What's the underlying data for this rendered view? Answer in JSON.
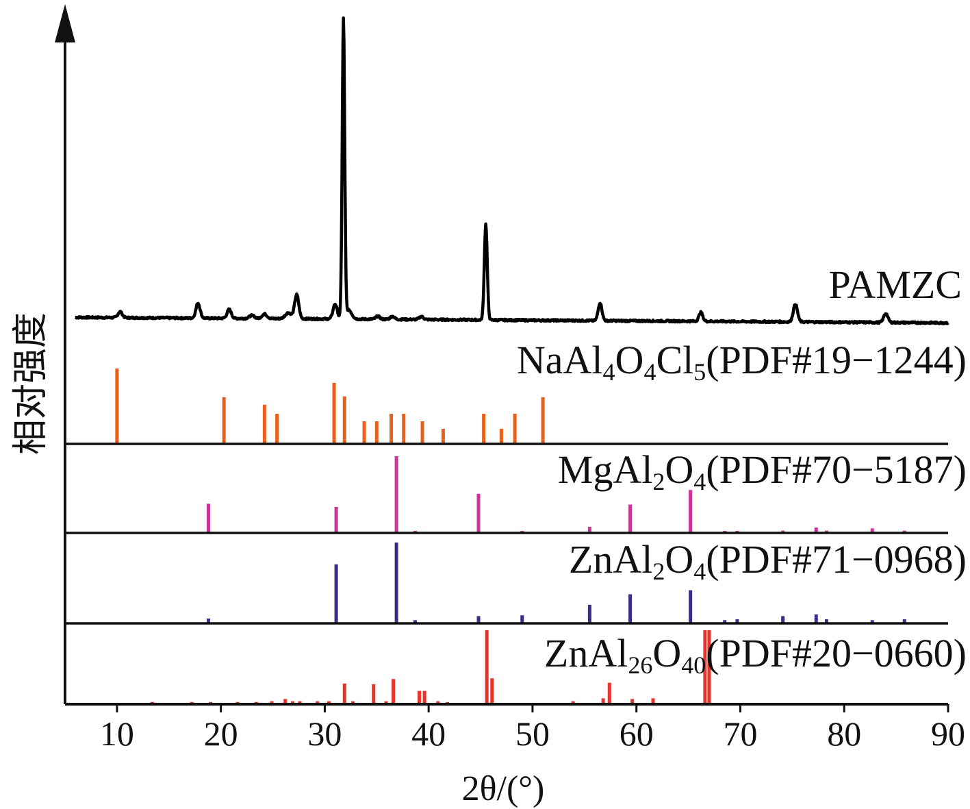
{
  "chart_data": {
    "type": "line",
    "xlabel": "2θ/(°)",
    "ylabel": "相对强度",
    "xlim": [
      5,
      90
    ],
    "x_ticks": [
      10,
      20,
      30,
      40,
      50,
      60,
      70,
      80,
      90
    ],
    "grid": false,
    "pattern": {
      "name": "PAMZC",
      "color": "#000000",
      "baseline": 0.02,
      "peaks": [
        [
          10.3,
          0.02,
          0.2
        ],
        [
          17.8,
          0.05,
          0.2
        ],
        [
          20.8,
          0.03,
          0.2
        ],
        [
          23.0,
          0.01,
          0.25
        ],
        [
          24.2,
          0.015,
          0.25
        ],
        [
          26.5,
          0.02,
          0.3
        ],
        [
          27.3,
          0.08,
          0.2
        ],
        [
          31.0,
          0.05,
          0.2
        ],
        [
          31.8,
          1.0,
          0.12
        ],
        [
          32.3,
          0.03,
          0.3
        ],
        [
          35.1,
          0.01,
          0.2
        ],
        [
          36.5,
          0.01,
          0.2
        ],
        [
          39.3,
          0.01,
          0.2
        ],
        [
          45.5,
          0.32,
          0.14
        ],
        [
          56.5,
          0.06,
          0.18
        ],
        [
          66.2,
          0.03,
          0.18
        ],
        [
          75.3,
          0.06,
          0.2
        ],
        [
          84.0,
          0.03,
          0.2
        ]
      ]
    },
    "references": [
      {
        "name": "NaAl4O4Cl5(PDF#19-1244)",
        "label_main": "NaAl",
        "label_parts": [
          [
            "NaAl",
            ""
          ],
          [
            "4",
            "sub"
          ],
          [
            "O",
            ""
          ],
          [
            "4",
            "sub"
          ],
          [
            "Cl",
            ""
          ],
          [
            "5",
            "sub"
          ],
          [
            "(PDF#19−1244)",
            ""
          ]
        ],
        "color": "#e8601c",
        "peaks": [
          [
            10.0,
            1.0
          ],
          [
            20.3,
            0.62
          ],
          [
            24.2,
            0.52
          ],
          [
            25.4,
            0.4
          ],
          [
            30.9,
            0.81
          ],
          [
            31.9,
            0.63
          ],
          [
            33.8,
            0.3
          ],
          [
            35.0,
            0.3
          ],
          [
            36.4,
            0.4
          ],
          [
            37.6,
            0.4
          ],
          [
            39.4,
            0.3
          ],
          [
            41.4,
            0.2
          ],
          [
            45.3,
            0.4
          ],
          [
            47.0,
            0.2
          ],
          [
            48.3,
            0.4
          ],
          [
            51.0,
            0.62
          ]
        ]
      },
      {
        "name": "MgAl2O4(PDF#70-5187)",
        "label_parts": [
          [
            "MgAl",
            ""
          ],
          [
            "2",
            "sub"
          ],
          [
            "O",
            ""
          ],
          [
            "4",
            "sub"
          ],
          [
            "(PDF#70−5187)",
            ""
          ]
        ],
        "color": "#cc3399",
        "peaks": [
          [
            18.8,
            0.38
          ],
          [
            31.1,
            0.34
          ],
          [
            36.9,
            1.0
          ],
          [
            38.7,
            0.02
          ],
          [
            44.8,
            0.51
          ],
          [
            49.0,
            0.01
          ],
          [
            55.5,
            0.08
          ],
          [
            59.4,
            0.37
          ],
          [
            65.2,
            0.56
          ],
          [
            68.5,
            0.02
          ],
          [
            69.7,
            0.02
          ],
          [
            74.1,
            0.03
          ],
          [
            77.3,
            0.07
          ],
          [
            78.3,
            0.03
          ],
          [
            82.7,
            0.06
          ],
          [
            85.8,
            0.03
          ]
        ]
      },
      {
        "name": "ZnAl2O4(PDF#71-0968)",
        "label_parts": [
          [
            "ZnAl",
            ""
          ],
          [
            "2",
            "sub"
          ],
          [
            "O",
            ""
          ],
          [
            "4",
            "sub"
          ],
          [
            "(PDF#71−0968)",
            ""
          ]
        ],
        "color": "#3b2a87",
        "peaks": [
          [
            18.8,
            0.06
          ],
          [
            31.1,
            0.73
          ],
          [
            36.9,
            1.0
          ],
          [
            38.7,
            0.04
          ],
          [
            44.8,
            0.09
          ],
          [
            49.0,
            0.1
          ],
          [
            55.5,
            0.23
          ],
          [
            59.4,
            0.36
          ],
          [
            65.2,
            0.41
          ],
          [
            68.5,
            0.04
          ],
          [
            69.7,
            0.05
          ],
          [
            74.1,
            0.09
          ],
          [
            77.3,
            0.11
          ],
          [
            78.3,
            0.05
          ],
          [
            82.7,
            0.04
          ],
          [
            85.8,
            0.05
          ]
        ]
      },
      {
        "name": "ZnAl26O40(PDF#20-0660)",
        "label_parts": [
          [
            "ZnAl",
            ""
          ],
          [
            "26",
            "sub"
          ],
          [
            "O",
            ""
          ],
          [
            "40",
            "sub"
          ],
          [
            "(PDF#20−0660)",
            ""
          ]
        ],
        "color": "#e8322a",
        "peaks": [
          [
            13.4,
            0.03
          ],
          [
            17.2,
            0.03
          ],
          [
            19.0,
            0.03
          ],
          [
            21.6,
            0.03
          ],
          [
            23.4,
            0.03
          ],
          [
            24.9,
            0.04
          ],
          [
            26.2,
            0.07
          ],
          [
            26.9,
            0.04
          ],
          [
            27.6,
            0.04
          ],
          [
            29.3,
            0.04
          ],
          [
            30.4,
            0.04
          ],
          [
            31.9,
            0.28
          ],
          [
            32.7,
            0.04
          ],
          [
            34.7,
            0.27
          ],
          [
            35.9,
            0.04
          ],
          [
            36.6,
            0.34
          ],
          [
            39.1,
            0.18
          ],
          [
            39.6,
            0.18
          ],
          [
            40.9,
            0.04
          ],
          [
            41.8,
            0.02
          ],
          [
            45.6,
            1.0
          ],
          [
            46.1,
            0.35
          ],
          [
            53.9,
            0.04
          ],
          [
            56.8,
            0.08
          ],
          [
            57.4,
            0.29
          ],
          [
            59.6,
            0.07
          ],
          [
            61.6,
            0.08
          ],
          [
            66.6,
            1.0
          ],
          [
            67.0,
            1.0
          ]
        ]
      }
    ]
  }
}
